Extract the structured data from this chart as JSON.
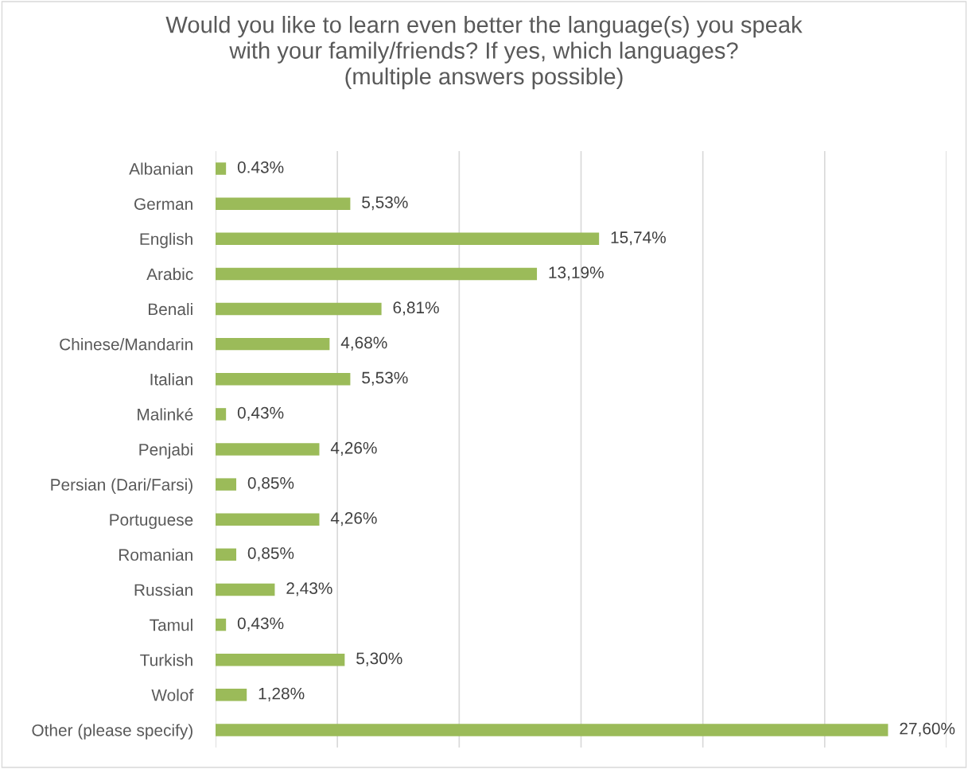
{
  "chart_data": {
    "type": "bar",
    "orientation": "horizontal",
    "title": "Would you like to learn even better the language(s) you speak\nwith your family/friends? If yes, which languages?\n(multiple answers possible)",
    "categories": [
      "Albanian",
      "German",
      "English",
      "Arabic",
      "Benali",
      "Chinese/Mandarin",
      "Italian",
      "Malinké",
      "Penjabi",
      "Persian (Dari/Farsi)",
      "Portuguese",
      "Romanian",
      "Russian",
      "Tamul",
      "Turkish",
      "Wolof",
      "Other (please specify)"
    ],
    "values": [
      0.43,
      5.53,
      15.74,
      13.19,
      6.81,
      4.68,
      5.53,
      0.43,
      4.26,
      0.85,
      4.26,
      0.85,
      2.43,
      0.43,
      5.3,
      1.28,
      27.6
    ],
    "value_labels": [
      "0.43%",
      "5,53%",
      "15,74%",
      "13,19%",
      "6,81%",
      "4,68%",
      "5,53%",
      "0,43%",
      "4,26%",
      "0,85%",
      "4,26%",
      "0,85%",
      "2,43%",
      "0,43%",
      "5,30%",
      "1,28%",
      "27,60%"
    ],
    "color": "#9bbb59",
    "xlim": [
      0,
      30
    ],
    "xticks": [
      {
        "value": 0,
        "label": null
      },
      {
        "value": 5,
        "label": null
      },
      {
        "value": 10,
        "label": null
      },
      {
        "value": 15,
        "label": null
      },
      {
        "value": 20,
        "label": null
      },
      {
        "value": 25,
        "label": null
      },
      {
        "value": 30,
        "label": null
      }
    ],
    "grid": "x",
    "tick_labels": "y"
  }
}
